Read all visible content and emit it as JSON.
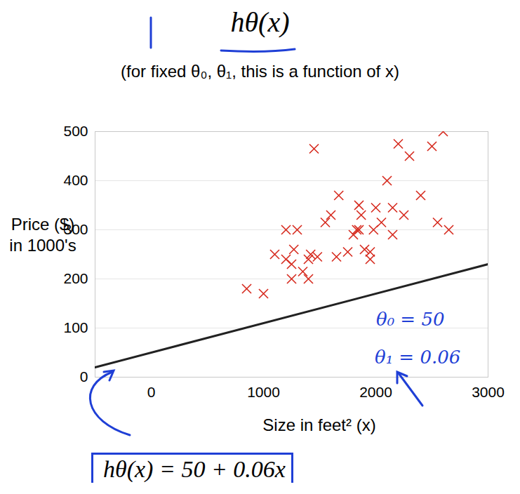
{
  "chart_data": {
    "type": "scatter",
    "title": "hθ(x)",
    "subtitle": "(for fixed θ₀, θ₁, this is a function of x)",
    "x_label": "Size in feet² (x)",
    "y_label": "Price ($)\nin 1000's",
    "xlim": [
      -500,
      3000
    ],
    "xticks": [
      0,
      1000,
      2000,
      3000
    ],
    "ylim": [
      0,
      500
    ],
    "yticks": [
      0,
      100,
      200,
      300,
      400,
      500
    ],
    "grid": true,
    "series": [
      {
        "type": "scatter",
        "color": "#d62a1e",
        "marker": "x",
        "x": [
          850,
          1000,
          1100,
          1200,
          1200,
          1250,
          1250,
          1270,
          1300,
          1350,
          1400,
          1400,
          1420,
          1450,
          1480,
          1550,
          1600,
          1650,
          1670,
          1750,
          1800,
          1830,
          1850,
          1850,
          1870,
          1900,
          1950,
          1950,
          1980,
          2000,
          2050,
          2100,
          2150,
          2150,
          2200,
          2250,
          2300,
          2400,
          2500,
          2550,
          2600,
          2650
        ],
        "values": [
          180,
          170,
          250,
          300,
          240,
          230,
          200,
          260,
          300,
          215,
          200,
          240,
          250,
          465,
          245,
          315,
          330,
          245,
          370,
          255,
          290,
          300,
          350,
          300,
          330,
          260,
          240,
          255,
          300,
          345,
          315,
          400,
          345,
          290,
          475,
          330,
          450,
          370,
          470,
          315,
          500,
          300
        ]
      },
      {
        "type": "line",
        "color": "#222222",
        "line_style": "solid",
        "x": [
          -500,
          3000
        ],
        "values": [
          20,
          230
        ]
      }
    ],
    "annotations": [
      "θ₀ = 50",
      "θ₁ = 0.06",
      "hθ(x) = 50 + 0.06x"
    ]
  }
}
